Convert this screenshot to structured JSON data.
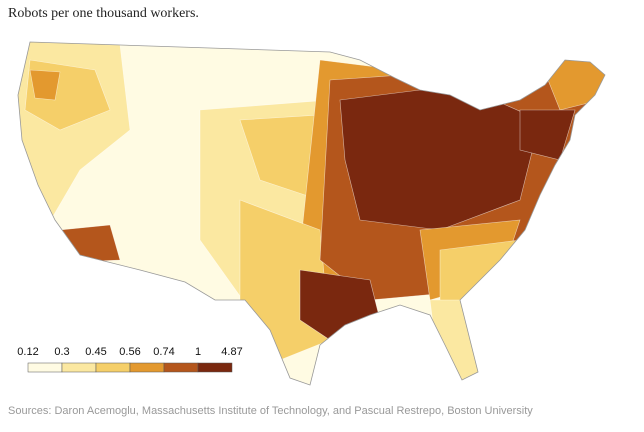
{
  "title": "Robots per one thousand workers.",
  "legend": {
    "ticks": [
      0.12,
      0.3,
      0.45,
      0.56,
      0.74,
      1,
      4.87
    ],
    "colors": [
      "#fffbe3",
      "#fbe8a1",
      "#f5cf69",
      "#e3992f",
      "#b4561c",
      "#7a280f"
    ]
  },
  "source": "Sources: Daron Acemoglu, Massachusetts Institute of Technology, and Pascual Restrepo, Boston University"
}
